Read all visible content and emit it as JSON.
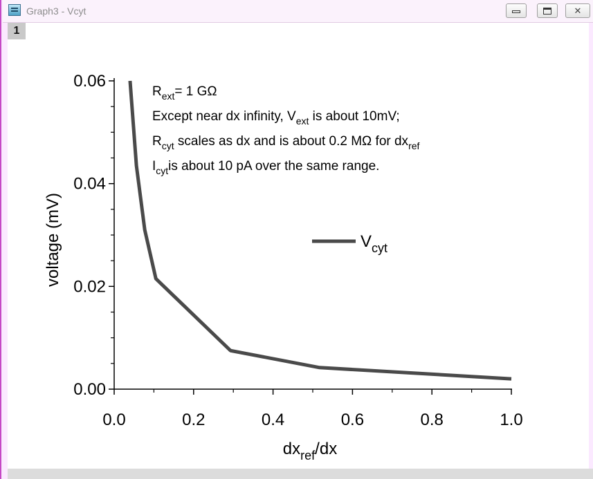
{
  "window": {
    "title": "Graph3 - Vcyt",
    "layer_label": "1",
    "icons": [
      "graph-app-icon",
      "minimize-icon",
      "maximize-icon",
      "close-icon"
    ]
  },
  "chart_data": {
    "type": "line",
    "xlabel_main": "dx",
    "xlabel_sub": "ref",
    "xlabel_tail": "/dx",
    "ylabel": "voltage (mV)",
    "xlim": [
      0.0,
      1.0
    ],
    "ylim": [
      0.0,
      0.06
    ],
    "x_ticks": [
      "0.0",
      "0.2",
      "0.4",
      "0.6",
      "0.8",
      "1.0"
    ],
    "y_ticks": [
      "0.00",
      "0.02",
      "0.04",
      "0.06"
    ],
    "grid": false,
    "legend_position": "center",
    "series": [
      {
        "name_main": "V",
        "name_sub": "cyt",
        "color": "#4a4a4a",
        "x": [
          0.04,
          0.056,
          0.077,
          0.105,
          0.293,
          0.517,
          1.0
        ],
        "y": [
          0.06,
          0.0435,
          0.031,
          0.0215,
          0.0075,
          0.0042,
          0.002
        ]
      }
    ],
    "annotations": [
      {
        "parts": [
          [
            "R",
            "n"
          ],
          [
            "ext",
            "sub"
          ],
          [
            "= 1 GΩ",
            "n"
          ]
        ]
      },
      {
        "parts": [
          [
            "Except near dx infinity, V",
            "n"
          ],
          [
            "ext",
            "sub"
          ],
          [
            " is about 10mV;",
            "n"
          ]
        ]
      },
      {
        "parts": [
          [
            "R",
            "n"
          ],
          [
            "cyt",
            "sub"
          ],
          [
            " scales as dx and is about 0.2 MΩ for dx",
            "n"
          ],
          [
            "ref",
            "sub"
          ]
        ]
      },
      {
        "parts": [
          [
            "I",
            "n"
          ],
          [
            "cyt",
            "sub"
          ],
          [
            "is about 10 pA over the same range.",
            "n"
          ]
        ]
      }
    ]
  }
}
